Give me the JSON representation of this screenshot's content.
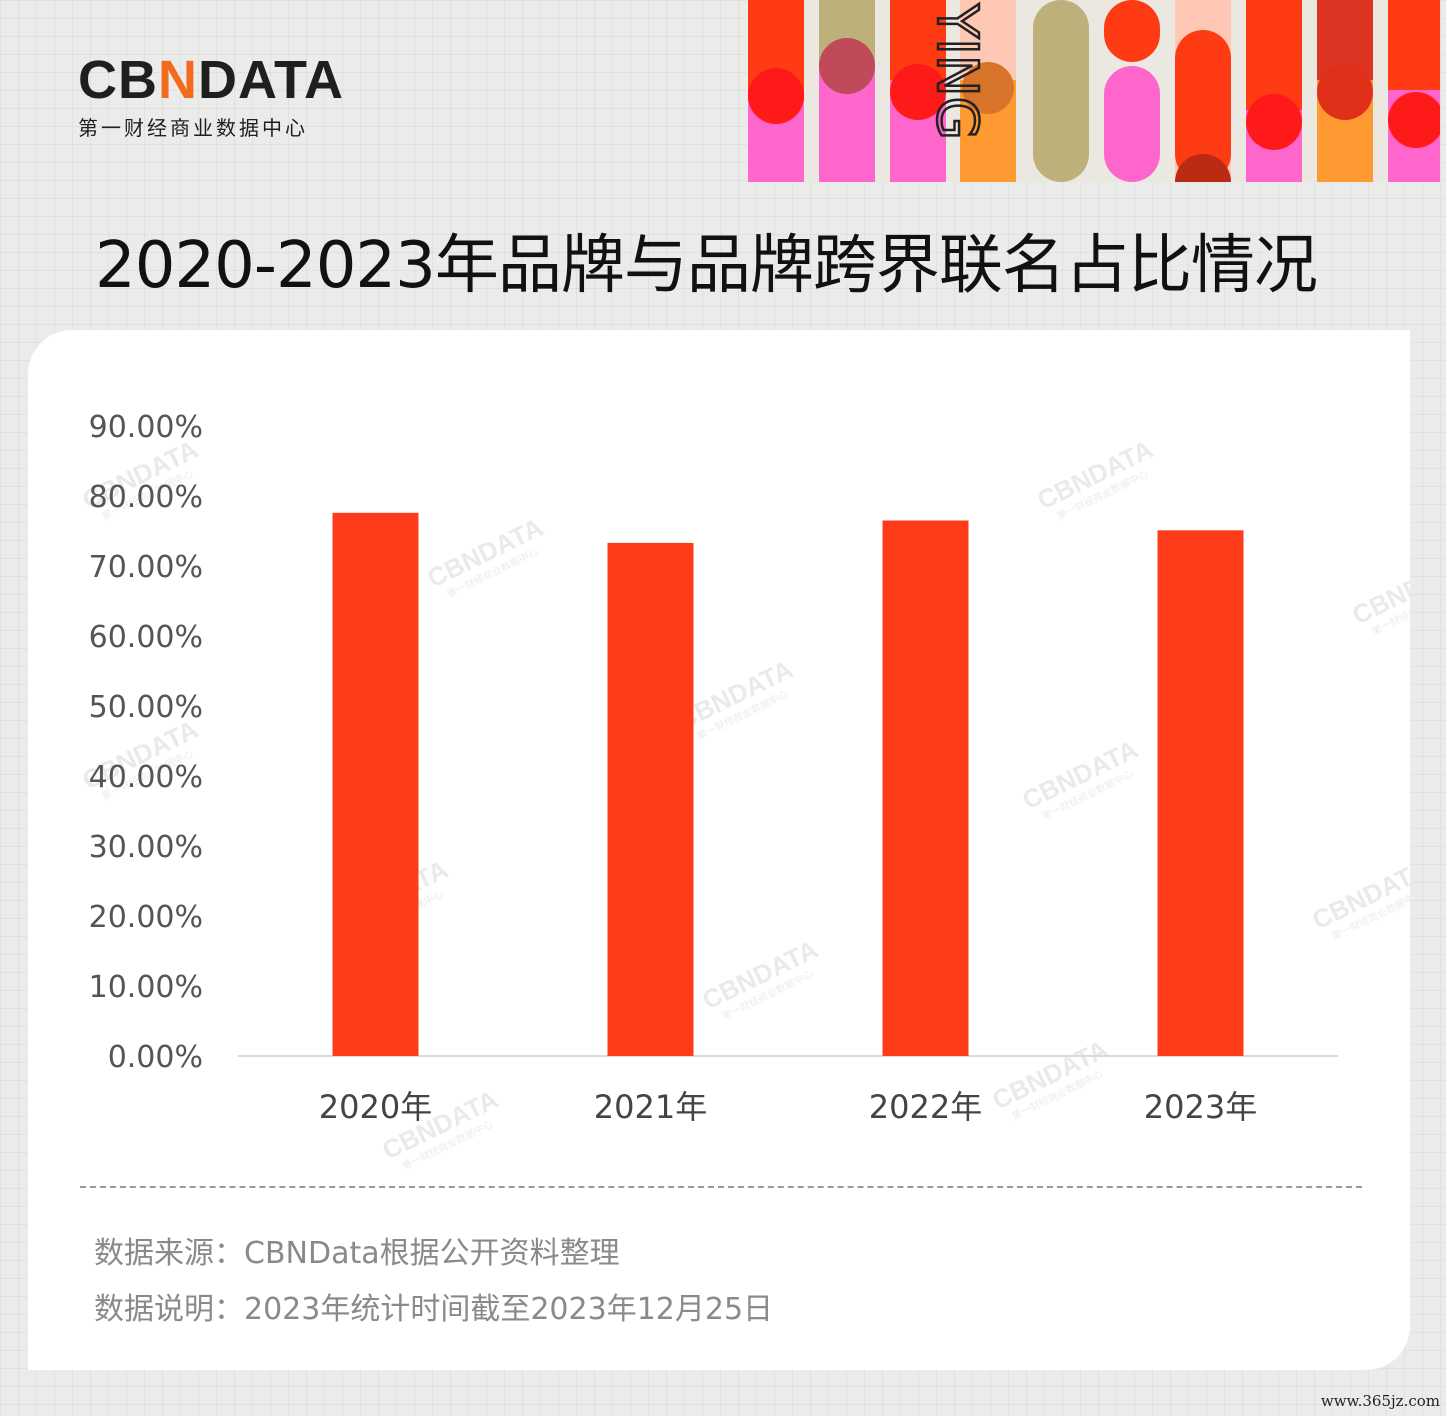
{
  "brand": {
    "logo_text_left": "CB",
    "logo_text_accent": "N",
    "logo_text_right": "DATA",
    "logo_subtitle": "第一财经商业数据中心",
    "accent_color": "#f26a1b"
  },
  "banner": {
    "vertical_text": "YING",
    "colors": [
      "#ff3b14",
      "#ff66cc",
      "#bdb07a",
      "#ff9a33",
      "#ffc8b4",
      "#dd3322"
    ]
  },
  "page_title": "2020-2023年品牌与品牌跨界联名占比情况",
  "chart_data": {
    "type": "bar",
    "title": "2020-2023年品牌与品牌跨界联名占比情况",
    "categories": [
      "2020年",
      "2021年",
      "2022年",
      "2023年"
    ],
    "values": [
      77.6,
      73.3,
      76.5,
      75.1
    ],
    "value_unit": "%",
    "ylim": [
      0,
      90
    ],
    "y_ticks": [
      "0.00%",
      "10.00%",
      "20.00%",
      "30.00%",
      "40.00%",
      "50.00%",
      "60.00%",
      "70.00%",
      "80.00%",
      "90.00%"
    ],
    "bar_color": "#ff3c1a",
    "grid": false,
    "legend": "none",
    "xlabel": "",
    "ylabel": ""
  },
  "notes": {
    "source": "数据来源：CBNData根据公开资料整理",
    "description": "数据说明：2023年统计时间截至2023年12月25日"
  },
  "watermark": {
    "main": "CBNDATA",
    "sub": "第一财经商业数据中心"
  },
  "site_mark": "www.365jz.com"
}
